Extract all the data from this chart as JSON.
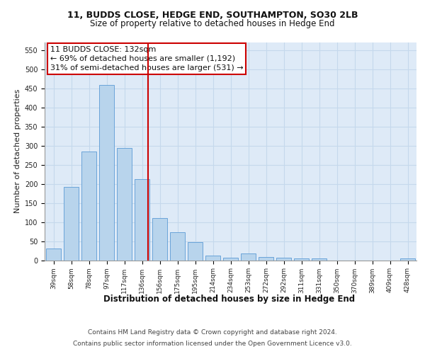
{
  "title1": "11, BUDDS CLOSE, HEDGE END, SOUTHAMPTON, SO30 2LB",
  "title2": "Size of property relative to detached houses in Hedge End",
  "xlabel": "Distribution of detached houses by size in Hedge End",
  "ylabel": "Number of detached properties",
  "categories": [
    "39sqm",
    "58sqm",
    "78sqm",
    "97sqm",
    "117sqm",
    "136sqm",
    "156sqm",
    "175sqm",
    "195sqm",
    "214sqm",
    "234sqm",
    "253sqm",
    "272sqm",
    "292sqm",
    "311sqm",
    "331sqm",
    "350sqm",
    "370sqm",
    "389sqm",
    "409sqm",
    "428sqm"
  ],
  "values": [
    30,
    192,
    285,
    458,
    293,
    213,
    110,
    74,
    47,
    12,
    7,
    18,
    8,
    7,
    5,
    4,
    0,
    0,
    0,
    0,
    4
  ],
  "bar_color": "#b8d4ec",
  "bar_edge_color": "#5b9bd5",
  "vline_color": "#cc0000",
  "vline_x_index": 5,
  "annotation_line1": "11 BUDDS CLOSE: 132sqm",
  "annotation_line2": "← 69% of detached houses are smaller (1,192)",
  "annotation_line3": "31% of semi-detached houses are larger (531) →",
  "annotation_box_facecolor": "#ffffff",
  "annotation_box_edgecolor": "#cc0000",
  "ylim": [
    0,
    570
  ],
  "yticks": [
    0,
    50,
    100,
    150,
    200,
    250,
    300,
    350,
    400,
    450,
    500,
    550
  ],
  "grid_color": "#c5d8ec",
  "plot_bg": "#deeaf7",
  "footer1": "Contains HM Land Registry data © Crown copyright and database right 2024.",
  "footer2": "Contains public sector information licensed under the Open Government Licence v3.0.",
  "title1_fontsize": 9,
  "title2_fontsize": 8.5,
  "ylabel_fontsize": 8,
  "xlabel_fontsize": 8.5,
  "tick_fontsize": 6.5,
  "ann_fontsize": 8,
  "footer_fontsize": 6.5
}
